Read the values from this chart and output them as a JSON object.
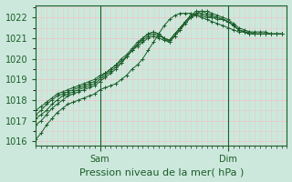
{
  "title": "",
  "xlabel": "Pression niveau de la mer( hPa )",
  "ylabel": "",
  "ylim": [
    1015.8,
    1022.6
  ],
  "xlim": [
    0,
    47
  ],
  "yticks": [
    1016,
    1017,
    1018,
    1019,
    1020,
    1021,
    1022
  ],
  "xtick_positions": [
    12,
    36
  ],
  "xtick_labels": [
    "Sam",
    "Dim"
  ],
  "vlines": [
    12,
    36
  ],
  "bg_color": "#cce8dc",
  "grid_color": "#e8c8c8",
  "line_color": "#1a5c28",
  "marker": "+",
  "marker_size": 3,
  "series": [
    [
      1016.1,
      1016.4,
      1016.8,
      1017.1,
      1017.4,
      1017.6,
      1017.8,
      1017.9,
      1018.0,
      1018.1,
      1018.2,
      1018.3,
      1018.5,
      1018.6,
      1018.7,
      1018.8,
      1019.0,
      1019.2,
      1019.5,
      1019.7,
      1020.0,
      1020.4,
      1020.8,
      1021.2,
      1021.6,
      1021.9,
      1022.1,
      1022.2,
      1022.2,
      1022.2,
      1022.1,
      1022.0,
      1021.9,
      1021.8,
      1021.7,
      1021.6,
      1021.5,
      1021.4,
      1021.3,
      1021.3,
      1021.3,
      1021.3,
      1021.3,
      1021.3,
      1021.2,
      1021.2,
      1021.2
    ],
    [
      1016.8,
      1017.0,
      1017.3,
      1017.6,
      1017.8,
      1018.0,
      1018.2,
      1018.3,
      1018.4,
      1018.5,
      1018.6,
      1018.7,
      1018.9,
      1019.1,
      1019.3,
      1019.5,
      1019.8,
      1020.1,
      1020.4,
      1020.6,
      1020.8,
      1021.0,
      1021.1,
      1021.0,
      1020.9,
      1020.8,
      1021.1,
      1021.4,
      1021.7,
      1022.0,
      1022.2,
      1022.3,
      1022.3,
      1022.2,
      1022.1,
      1022.0,
      1021.9,
      1021.7,
      1021.5,
      1021.4,
      1021.3,
      1021.2,
      1021.2,
      1021.2,
      1021.2,
      1021.2,
      1021.2
    ],
    [
      1017.1,
      1017.3,
      1017.5,
      1017.8,
      1018.0,
      1018.2,
      1018.3,
      1018.4,
      1018.5,
      1018.6,
      1018.7,
      1018.8,
      1019.0,
      1019.2,
      1019.4,
      1019.6,
      1019.8,
      1020.1,
      1020.4,
      1020.7,
      1021.0,
      1021.2,
      1021.3,
      1021.2,
      1021.0,
      1020.8,
      1021.1,
      1021.4,
      1021.8,
      1022.1,
      1022.3,
      1022.3,
      1022.2,
      1022.1,
      1022.0,
      1021.9,
      1021.8,
      1021.6,
      1021.4,
      1021.3,
      1021.2,
      1021.2,
      1021.2,
      1021.2,
      1021.2,
      1021.2,
      1021.2
    ],
    [
      1017.3,
      1017.5,
      1017.8,
      1018.0,
      1018.2,
      1018.3,
      1018.4,
      1018.5,
      1018.6,
      1018.7,
      1018.8,
      1018.9,
      1019.1,
      1019.3,
      1019.5,
      1019.7,
      1020.0,
      1020.2,
      1020.5,
      1020.8,
      1021.0,
      1021.2,
      1021.3,
      1021.2,
      1021.0,
      1020.9,
      1021.2,
      1021.5,
      1021.8,
      1022.1,
      1022.2,
      1022.2,
      1022.1,
      1022.0,
      1022.0,
      1021.9,
      1021.8,
      1021.6,
      1021.4,
      1021.3,
      1021.2,
      1021.2,
      1021.2,
      1021.2,
      1021.2,
      1021.2,
      1021.2
    ],
    [
      1017.5,
      1017.7,
      1017.9,
      1018.1,
      1018.3,
      1018.4,
      1018.5,
      1018.6,
      1018.7,
      1018.8,
      1018.9,
      1019.0,
      1019.2,
      1019.3,
      1019.5,
      1019.7,
      1019.9,
      1020.1,
      1020.4,
      1020.7,
      1020.9,
      1021.1,
      1021.2,
      1021.1,
      1021.0,
      1020.9,
      1021.2,
      1021.5,
      1021.8,
      1022.0,
      1022.1,
      1022.1,
      1022.0,
      1022.0,
      1021.9,
      1021.9,
      1021.8,
      1021.6,
      1021.4,
      1021.3,
      1021.2,
      1021.2,
      1021.2,
      1021.2,
      1021.2,
      1021.2,
      1021.2
    ]
  ]
}
